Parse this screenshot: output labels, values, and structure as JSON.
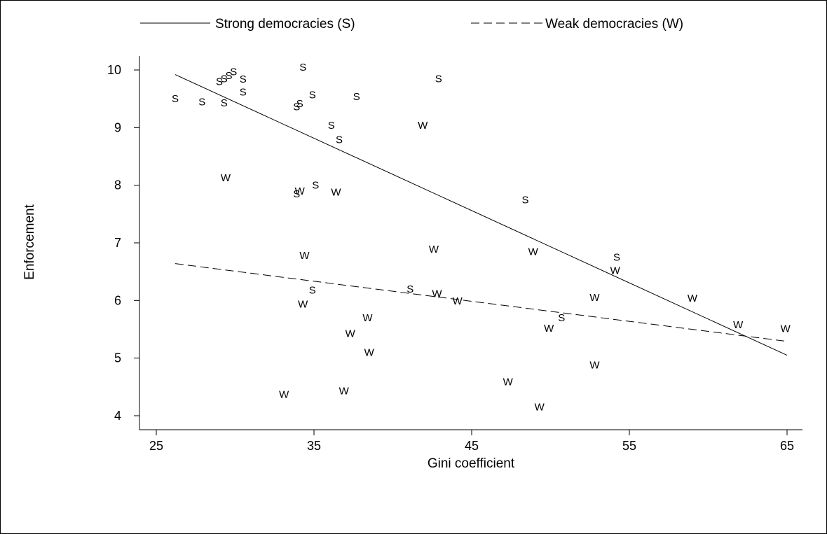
{
  "chart_data": {
    "type": "scatter",
    "xlabel": "Gini coefficient",
    "ylabel": "Enforcement",
    "xlim": [
      25,
      65
    ],
    "ylim": [
      4,
      10
    ],
    "x_ticks": [
      "25",
      "35",
      "45",
      "55",
      "65"
    ],
    "y_ticks": [
      "4",
      "5",
      "6",
      "7",
      "8",
      "9",
      "10"
    ],
    "grid": false,
    "legend_position": "top",
    "legend": [
      {
        "label": "Strong democracies (S)",
        "line_style": "solid"
      },
      {
        "label": "Weak democracies (W)",
        "line_style": "dashed"
      }
    ],
    "series": [
      {
        "name": "Strong democracies (S)",
        "marker": "S",
        "points": [
          [
            26.2,
            9.5
          ],
          [
            27.9,
            9.45
          ],
          [
            29.0,
            9.8
          ],
          [
            29.3,
            9.85
          ],
          [
            29.3,
            9.43
          ],
          [
            29.6,
            9.9
          ],
          [
            29.9,
            9.97
          ],
          [
            30.5,
            9.84
          ],
          [
            30.5,
            9.62
          ],
          [
            33.9,
            9.36
          ],
          [
            34.1,
            9.42
          ],
          [
            34.3,
            10.05
          ],
          [
            34.9,
            9.57
          ],
          [
            36.1,
            9.04
          ],
          [
            36.6,
            8.79
          ],
          [
            37.7,
            9.54
          ],
          [
            42.9,
            9.85
          ],
          [
            48.4,
            7.75
          ],
          [
            54.2,
            6.75
          ],
          [
            35.1,
            8.0
          ],
          [
            33.9,
            7.85
          ],
          [
            34.9,
            6.18
          ],
          [
            41.1,
            6.2
          ],
          [
            50.7,
            5.7
          ]
        ]
      },
      {
        "name": "Weak democracies (W)",
        "marker": "W",
        "points": [
          [
            29.4,
            8.13
          ],
          [
            34.1,
            7.9
          ],
          [
            36.4,
            7.88
          ],
          [
            34.4,
            6.78
          ],
          [
            42.6,
            6.89
          ],
          [
            48.9,
            6.85
          ],
          [
            54.1,
            6.52
          ],
          [
            41.9,
            9.04
          ],
          [
            42.8,
            6.12
          ],
          [
            44.1,
            5.99
          ],
          [
            34.3,
            5.94
          ],
          [
            38.4,
            5.7
          ],
          [
            37.3,
            5.43
          ],
          [
            38.5,
            5.1
          ],
          [
            49.9,
            5.52
          ],
          [
            52.8,
            6.05
          ],
          [
            59.0,
            6.04
          ],
          [
            61.9,
            5.58
          ],
          [
            64.9,
            5.51
          ],
          [
            52.8,
            4.88
          ],
          [
            47.3,
            4.59
          ],
          [
            49.3,
            4.15
          ],
          [
            36.9,
            4.43
          ],
          [
            33.1,
            4.37
          ]
        ]
      }
    ],
    "fit_lines": [
      {
        "series": "Strong democracies (S)",
        "style": "solid",
        "from": [
          26.2,
          9.92
        ],
        "to": [
          65.0,
          5.05
        ]
      },
      {
        "series": "Weak democracies (W)",
        "style": "dashed",
        "from": [
          26.2,
          6.64
        ],
        "to": [
          65.0,
          5.29
        ]
      }
    ]
  }
}
